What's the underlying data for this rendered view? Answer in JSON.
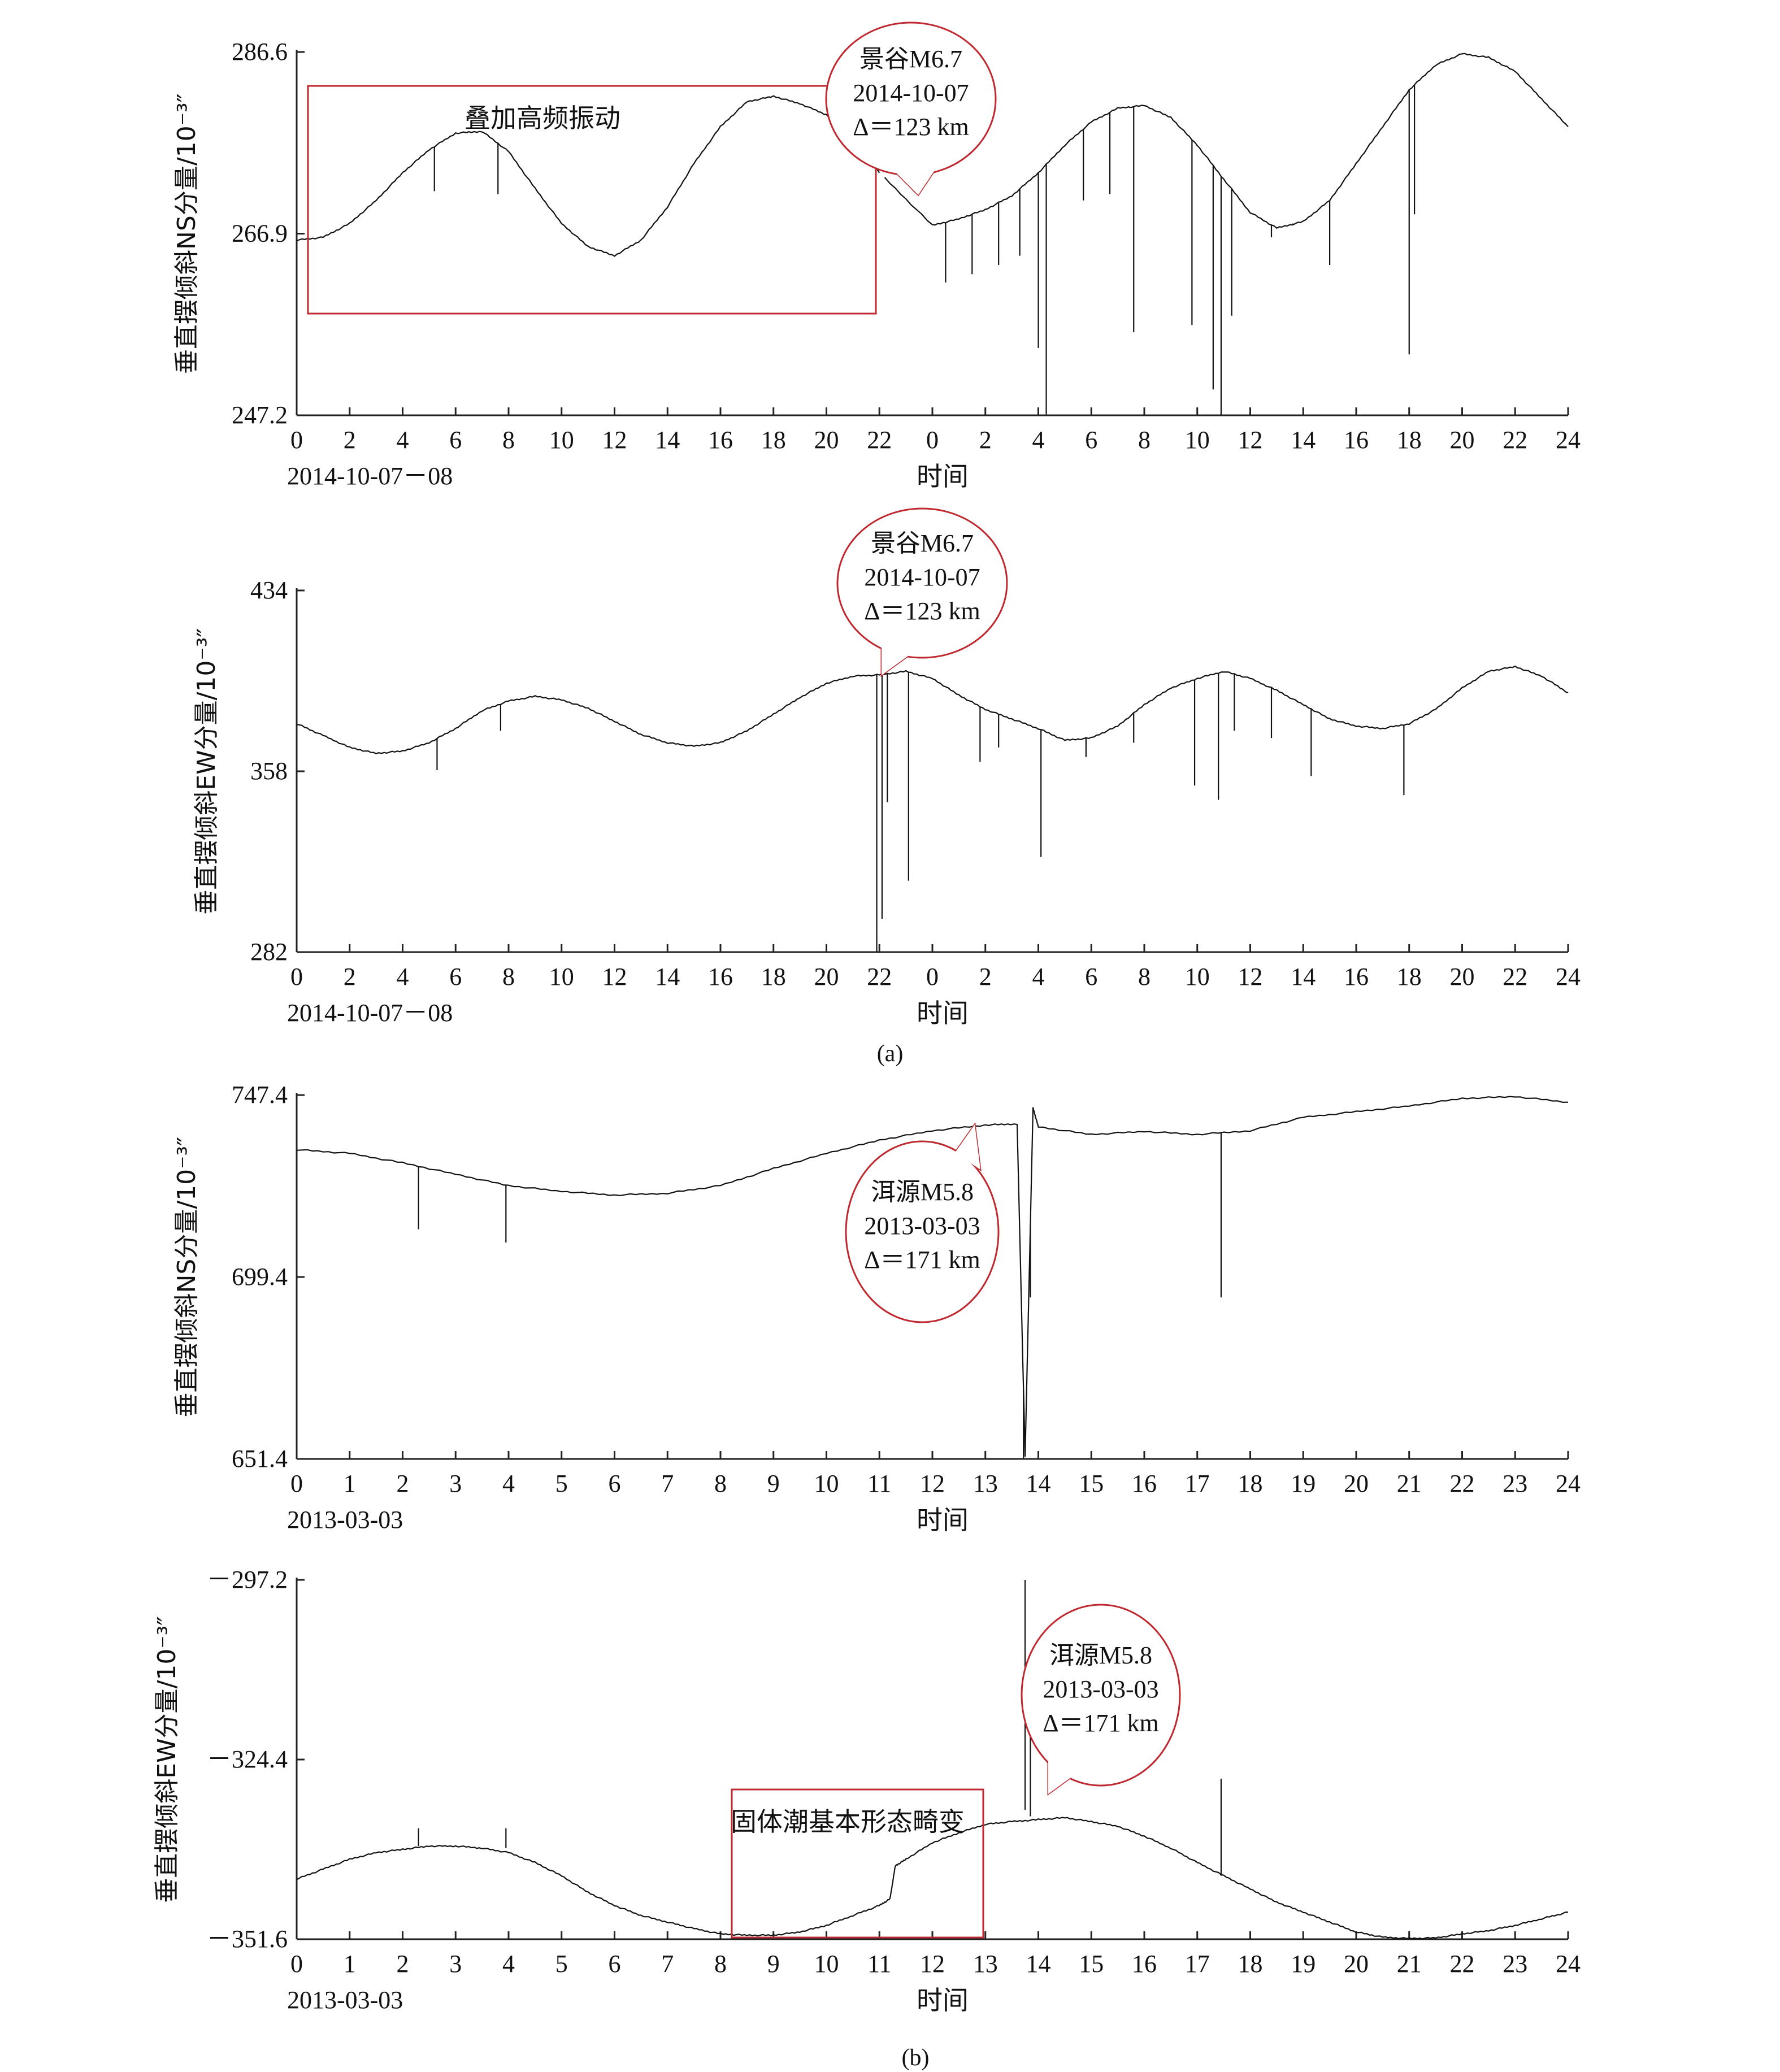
{
  "charts": [
    {
      "id": "a1",
      "ylabel": "垂直摆倾斜NS分量/10⁻³″",
      "yticks": [
        "286.6",
        "266.9",
        "247.2"
      ],
      "xticks": [
        "0",
        "2",
        "4",
        "6",
        "8",
        "10",
        "12",
        "14",
        "16",
        "18",
        "20",
        "22",
        "0",
        "2",
        "4",
        "6",
        "8",
        "10",
        "12",
        "14",
        "16",
        "18",
        "20",
        "22",
        "24"
      ],
      "date_label": "2014-10-07－08",
      "xlabel": "时间",
      "annotations": [
        {
          "kind": "box",
          "text": "叠加高频振动"
        },
        {
          "kind": "bubble",
          "lines": [
            "景谷M6.7",
            "2014-10-07",
            "Δ＝123 km"
          ]
        }
      ]
    },
    {
      "id": "a2",
      "ylabel": "垂直摆倾斜EW分量/10⁻³″",
      "yticks": [
        "434",
        "358",
        "282"
      ],
      "xticks": [
        "0",
        "2",
        "4",
        "6",
        "8",
        "10",
        "12",
        "14",
        "16",
        "18",
        "20",
        "22",
        "0",
        "2",
        "4",
        "6",
        "8",
        "10",
        "12",
        "14",
        "16",
        "18",
        "20",
        "22",
        "24"
      ],
      "date_label": "2014-10-07－08",
      "xlabel": "时间",
      "annotations": [
        {
          "kind": "bubble",
          "lines": [
            "景谷M6.7",
            "2014-10-07",
            "Δ＝123 km"
          ]
        }
      ]
    },
    {
      "id": "b1",
      "ylabel": "垂直摆倾斜NS分量/10⁻³″",
      "yticks": [
        "747.4",
        "699.4",
        "651.4"
      ],
      "xticks": [
        "0",
        "1",
        "2",
        "3",
        "4",
        "5",
        "6",
        "7",
        "8",
        "9",
        "10",
        "11",
        "12",
        "13",
        "14",
        "15",
        "16",
        "17",
        "18",
        "19",
        "20",
        "21",
        "22",
        "23",
        "24"
      ],
      "date_label": "2013-03-03",
      "xlabel": "时间",
      "annotations": [
        {
          "kind": "bubble",
          "lines": [
            "洱源M5.8",
            "2013-03-03",
            "Δ＝171 km"
          ]
        }
      ]
    },
    {
      "id": "b2",
      "ylabel": "垂直摆倾斜EW分量/10⁻³″",
      "yticks": [
        "－297.2",
        "－324.4",
        "－351.6"
      ],
      "xticks": [
        "0",
        "1",
        "2",
        "3",
        "4",
        "5",
        "6",
        "7",
        "8",
        "9",
        "10",
        "11",
        "12",
        "13",
        "14",
        "15",
        "16",
        "17",
        "18",
        "19",
        "20",
        "21",
        "22",
        "23",
        "24"
      ],
      "date_label": "2013-03-03",
      "xlabel": "时间",
      "annotations": [
        {
          "kind": "bubble",
          "lines": [
            "洱源M5.8",
            "2013-03-03",
            "Δ＝171 km"
          ]
        },
        {
          "kind": "box",
          "text": "固体潮基本形态畸变"
        }
      ]
    }
  ],
  "captions": {
    "a": "(a)",
    "b": "(b)"
  },
  "chart_data": [
    {
      "type": "line",
      "ylabel": "垂直摆倾斜NS分量/10⁻³″",
      "xlabel": "时间",
      "x_unit": "hours since 2014-10-07 00:00",
      "xlim": [
        0,
        48
      ],
      "ylim": [
        247.2,
        286.6
      ],
      "series": [
        {
          "x": [
            0,
            1,
            2,
            3,
            4,
            5,
            6,
            7,
            8,
            9,
            10,
            11,
            12,
            13,
            14,
            15,
            16,
            17,
            18,
            19,
            20,
            21,
            22,
            24,
            25,
            26,
            27,
            28,
            29,
            30,
            31,
            32,
            33,
            34,
            35,
            36,
            37,
            38,
            39,
            40,
            41,
            42,
            43,
            44,
            45,
            46,
            47,
            48
          ],
          "y": [
            266.2,
            266.5,
            268,
            270.5,
            273.5,
            276,
            277.8,
            278,
            275.8,
            271.8,
            268,
            265.5,
            264.5,
            266.2,
            269.8,
            274.5,
            278.5,
            281.2,
            281.8,
            281,
            279.8,
            277,
            273.5,
            267.8,
            268.5,
            269.5,
            271,
            273.5,
            276.5,
            279,
            280.5,
            280.8,
            279.5,
            276.5,
            272.8,
            269.2,
            267.5,
            268.2,
            270.5,
            274.5,
            278.5,
            282.5,
            285.2,
            286.4,
            286,
            284.5,
            281.5,
            278.5
          ]
        }
      ],
      "spikes": [
        {
          "x": 5.2,
          "y_min": 271.5
        },
        {
          "x": 7.6,
          "y_min": 271.2
        },
        {
          "x": 24.5,
          "y_min": 261.6
        },
        {
          "x": 25.5,
          "y_min": 262.5
        },
        {
          "x": 26.5,
          "y_min": 263.5
        },
        {
          "x": 27.3,
          "y_min": 264.5
        },
        {
          "x": 28.0,
          "y_min": 254.5
        },
        {
          "x": 28.3,
          "y_min": 247.3
        },
        {
          "x": 29.7,
          "y_min": 270.5
        },
        {
          "x": 30.7,
          "y_min": 271.2
        },
        {
          "x": 31.6,
          "y_min": 256.2
        },
        {
          "x": 33.8,
          "y_min": 257
        },
        {
          "x": 34.6,
          "y_min": 250
        },
        {
          "x": 34.9,
          "y_min": 247.2
        },
        {
          "x": 35.3,
          "y_min": 258
        },
        {
          "x": 36.8,
          "y_min": 266.5
        },
        {
          "x": 37.6,
          "y_min": 268
        },
        {
          "x": 39.0,
          "y_min": 263.5
        },
        {
          "x": 42.0,
          "y_min": 253.8
        },
        {
          "x": 42.2,
          "y_min": 269
        }
      ]
    },
    {
      "type": "line",
      "ylabel": "垂直摆倾斜EW分量/10⁻³″",
      "xlabel": "时间",
      "x_unit": "hours since 2014-10-07 00:00",
      "xlim": [
        0,
        48
      ],
      "ylim": [
        282,
        434
      ],
      "series": [
        {
          "x": [
            0,
            1,
            2,
            3,
            4,
            5,
            6,
            7,
            8,
            9,
            10,
            11,
            12,
            13,
            14,
            15,
            16,
            17,
            18,
            19,
            20,
            21,
            22,
            23,
            24,
            25,
            26,
            27,
            28,
            29,
            30,
            31,
            32,
            33,
            34,
            35,
            36,
            37,
            38,
            39,
            40,
            41,
            42,
            43,
            44,
            45,
            46,
            47,
            48
          ],
          "y": [
            378,
            373,
            368,
            365.5,
            366.5,
            370,
            376,
            383.5,
            387.5,
            389.5,
            388,
            384.5,
            379,
            373.5,
            370,
            368.5,
            370,
            375,
            382,
            389,
            395,
            398,
            398.5,
            400,
            397,
            390,
            384,
            380,
            376,
            371,
            372,
            377,
            386,
            393,
            397,
            400,
            397,
            392,
            386,
            380,
            377,
            376,
            378,
            384,
            393,
            400,
            402,
            398,
            391
          ]
        }
      ],
      "spikes": [
        {
          "x": 5.3,
          "y_min": 358.5
        },
        {
          "x": 7.7,
          "y_min": 375
        },
        {
          "x": 21.9,
          "y_min": 282
        },
        {
          "x": 22.1,
          "y_min": 296
        },
        {
          "x": 22.3,
          "y_min": 345
        },
        {
          "x": 23.1,
          "y_min": 312
        },
        {
          "x": 25.8,
          "y_min": 362
        },
        {
          "x": 26.5,
          "y_min": 368
        },
        {
          "x": 28.1,
          "y_min": 322
        },
        {
          "x": 29.8,
          "y_min": 364
        },
        {
          "x": 31.6,
          "y_min": 370
        },
        {
          "x": 33.9,
          "y_min": 352
        },
        {
          "x": 34.8,
          "y_min": 346
        },
        {
          "x": 35.4,
          "y_min": 375
        },
        {
          "x": 36.8,
          "y_min": 372
        },
        {
          "x": 38.3,
          "y_min": 356
        },
        {
          "x": 41.8,
          "y_min": 348
        }
      ]
    },
    {
      "type": "line",
      "ylabel": "垂直摆倾斜NS分量/10⁻³″",
      "xlabel": "时间",
      "x_unit": "hours",
      "xlim": [
        0,
        24
      ],
      "ylim": [
        651.4,
        747.4
      ],
      "series": [
        {
          "x": [
            0,
            1,
            2,
            3,
            4,
            5,
            6,
            7,
            8,
            9,
            10,
            11,
            12,
            13,
            13.6,
            13.75,
            13.9,
            14,
            15,
            16,
            17,
            18,
            19,
            20,
            21,
            22,
            23,
            24
          ],
          "y": [
            733,
            732,
            729.5,
            726.5,
            723.5,
            722,
            721,
            721.5,
            723.5,
            728,
            732,
            735.5,
            738,
            739.5,
            739.8,
            652,
            744,
            739,
            737,
            737.8,
            737,
            738,
            741.5,
            743,
            744.5,
            746.5,
            747,
            745.5
          ]
        }
      ],
      "spikes": [
        {
          "x": 2.3,
          "y_min": 712
        },
        {
          "x": 3.95,
          "y_min": 708.5
        },
        {
          "x": 13.72,
          "y_min": 651.6
        },
        {
          "x": 13.85,
          "y_min": 694
        },
        {
          "x": 17.45,
          "y_min": 694
        }
      ]
    },
    {
      "type": "line",
      "ylabel": "垂直摆倾斜EW分量/10⁻³″",
      "xlabel": "时间",
      "x_unit": "hours",
      "xlim": [
        0,
        24
      ],
      "ylim": [
        -351.6,
        -297.2
      ],
      "series": [
        {
          "x": [
            0,
            0.5,
            1,
            1.5,
            2,
            2.5,
            3,
            3.5,
            4,
            4.5,
            5,
            5.5,
            6,
            6.5,
            7,
            7.5,
            8,
            8.5,
            9,
            9.5,
            10,
            10.5,
            11,
            11.2,
            11.3,
            11.5,
            12,
            12.5,
            13,
            13.5,
            14,
            14.5,
            15,
            15.5,
            16,
            16.5,
            17,
            17.5,
            18,
            18.5,
            19,
            19.5,
            20,
            20.5,
            21,
            21.5,
            22,
            22.5,
            23,
            23.5,
            24
          ],
          "y": [
            -342.5,
            -341,
            -339.5,
            -338.5,
            -338,
            -337.5,
            -337.5,
            -337.8,
            -338.5,
            -340,
            -342,
            -344.5,
            -346.5,
            -348,
            -349,
            -350,
            -350.8,
            -351,
            -351,
            -350.5,
            -349.5,
            -348,
            -346.5,
            -345.5,
            -340.5,
            -339.5,
            -337,
            -335.5,
            -334.2,
            -333.8,
            -333.5,
            -333.2,
            -333.8,
            -334.5,
            -336,
            -337.8,
            -340,
            -342,
            -344,
            -346,
            -347.5,
            -349,
            -350.5,
            -351.3,
            -351.5,
            -351.4,
            -350.8,
            -350.3,
            -349.5,
            -348.5,
            -347.5
          ]
        }
      ],
      "spikes": [
        {
          "x": 13.75,
          "y_min": -332,
          "y_max": -297.2
        },
        {
          "x": 13.85,
          "y_min": -333,
          "y_max": -309
        },
        {
          "x": 17.45,
          "y_min": -342,
          "y_max": -327.3
        },
        {
          "x": 2.3,
          "y_min": -337.5,
          "y_max": -334.8
        },
        {
          "x": 3.95,
          "y_min": -337.8,
          "y_max": -334.8
        }
      ]
    }
  ]
}
